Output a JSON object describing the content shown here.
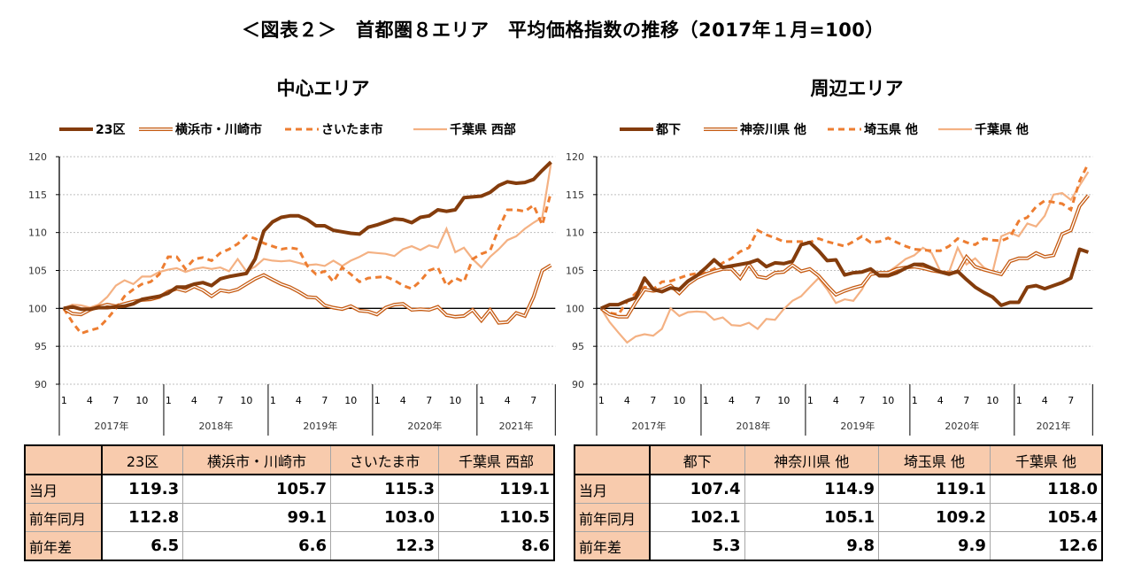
{
  "title": "＜図表２＞　首都圏８エリア　平均価格指数の推移（2017年１月=100）",
  "colors": {
    "s1": "#843c0c",
    "s2": "#c55a11",
    "s3": "#ed7d31",
    "s4": "#f4b183"
  },
  "chart_data": [
    {
      "type": "line",
      "title": "中心エリア",
      "ylim": [
        90,
        120
      ],
      "yticks": [
        90,
        95,
        100,
        105,
        110,
        115,
        120
      ],
      "grid": true,
      "legend": "top",
      "x_month_ticks": [
        "1",
        "4",
        "7",
        "10"
      ],
      "years": [
        "2017年",
        "2018年",
        "2019年",
        "2020年",
        "2021年"
      ],
      "x_start": "2017-01",
      "x_end": "2021-09",
      "series": [
        {
          "name": "23区",
          "style": "thick",
          "values": [
            100,
            100.2,
            99.9,
            99.9,
            100.1,
            100.1,
            100.2,
            100.3,
            100.6,
            101.2,
            101.4,
            101.6,
            102.0,
            102.8,
            102.8,
            103.2,
            103.4,
            103.0,
            103.9,
            104.2,
            104.4,
            104.6,
            106.5,
            110.2,
            111.4,
            112.0,
            112.2,
            112.2,
            111.7,
            110.9,
            110.9,
            110.3,
            110.1,
            109.9,
            109.8,
            110.7,
            111.0,
            111.4,
            111.8,
            111.7,
            111.3,
            112.0,
            112.2,
            113.0,
            112.8,
            113.0,
            114.6,
            114.7,
            114.8,
            115.3,
            116.2,
            116.7,
            116.5,
            116.6,
            117.0,
            118.2,
            119.3
          ]
        },
        {
          "name": "横浜市・川崎市",
          "style": "double",
          "values": [
            100,
            99.3,
            99.2,
            99.8,
            100.2,
            100.5,
            100.3,
            100.6,
            100.9,
            101.1,
            101.2,
            101.5,
            102.2,
            102.6,
            102.3,
            102.9,
            102.4,
            101.6,
            102.4,
            102.2,
            102.5,
            103.2,
            103.9,
            104.4,
            103.8,
            103.2,
            102.8,
            102.2,
            101.5,
            101.4,
            100.4,
            100.1,
            99.9,
            100.3,
            99.7,
            99.6,
            99.2,
            100.1,
            100.5,
            100.6,
            99.8,
            99.9,
            99.8,
            100.2,
            99.1,
            98.9,
            99.0,
            99.8,
            98.4,
            99.8,
            98.1,
            98.2,
            99.4,
            99.0,
            101.5,
            105.0,
            105.7
          ]
        },
        {
          "name": "さいたま市",
          "style": "dashed",
          "values": [
            100,
            98.2,
            96.7,
            97.1,
            97.4,
            98.6,
            100.0,
            101.6,
            102.5,
            103.2,
            103.5,
            104.5,
            106.8,
            106.8,
            105.2,
            106.5,
            106.7,
            106.3,
            107.3,
            107.8,
            108.5,
            109.6,
            109.2,
            108.6,
            108.2,
            107.8,
            108.0,
            107.8,
            105.6,
            104.5,
            104.9,
            103.5,
            105.4,
            104.5,
            103.5,
            104.0,
            104.1,
            104.2,
            103.7,
            103.0,
            102.6,
            103.6,
            105.0,
            105.4,
            103.0,
            104.0,
            103.5,
            106.5,
            107.2,
            107.6,
            110.5,
            113.0,
            113.0,
            112.8,
            113.6,
            111.0,
            115.3
          ]
        },
        {
          "name": "千葉県 西部",
          "style": "light",
          "values": [
            100,
            100.5,
            100.4,
            100.1,
            100.5,
            101.5,
            103.0,
            103.7,
            103.2,
            104.2,
            104.2,
            104.8,
            105.1,
            105.3,
            104.8,
            105.2,
            105.4,
            105.2,
            105.4,
            104.9,
            106.5,
            104.9,
            105.5,
            106.5,
            106.3,
            106.2,
            106.3,
            106.0,
            105.7,
            105.8,
            105.6,
            106.3,
            105.6,
            106.3,
            106.8,
            107.4,
            107.3,
            107.2,
            106.9,
            107.8,
            108.2,
            107.7,
            108.3,
            108.0,
            110.5,
            107.4,
            108.0,
            106.5,
            105.4,
            106.8,
            107.8,
            109.0,
            109.5,
            110.5,
            111.3,
            112.0,
            119.1
          ]
        }
      ]
    },
    {
      "type": "line",
      "title": "周辺エリア",
      "ylim": [
        90,
        120
      ],
      "yticks": [
        90,
        95,
        100,
        105,
        110,
        115,
        120
      ],
      "grid": true,
      "legend": "top",
      "x_month_ticks": [
        "1",
        "4",
        "7",
        "10"
      ],
      "years": [
        "2017年",
        "2018年",
        "2019年",
        "2020年",
        "2021年"
      ],
      "x_start": "2017-01",
      "x_end": "2021-09",
      "series": [
        {
          "name": "都下",
          "style": "thick",
          "values": [
            100,
            100.5,
            100.5,
            101,
            101.4,
            104.0,
            102.5,
            102.2,
            102.7,
            102.5,
            103.6,
            104.3,
            105.3,
            106.4,
            105.4,
            105.6,
            105.8,
            106.0,
            106.4,
            105.5,
            106.0,
            105.9,
            106.2,
            108.4,
            108.7,
            107.6,
            106.3,
            106.4,
            104.4,
            104.7,
            104.8,
            105.2,
            104.3,
            104.3,
            104.7,
            105.3,
            105.8,
            105.8,
            105.3,
            104.8,
            104.5,
            104.9,
            103.8,
            102.8,
            102.1,
            101.5,
            100.4,
            100.8,
            100.8,
            102.8,
            103.0,
            102.6,
            103.0,
            103.4,
            104.0,
            107.8,
            107.4
          ]
        },
        {
          "name": "神奈川県 他",
          "style": "double",
          "values": [
            100,
            99.2,
            98.9,
            98.9,
            100.8,
            102.5,
            102.3,
            102.5,
            103.0,
            102.0,
            103.2,
            104.0,
            104.5,
            104.9,
            105.2,
            105.2,
            104.0,
            105.8,
            104.2,
            104.0,
            104.7,
            104.8,
            105.7,
            104.9,
            105.2,
            104.3,
            103.0,
            101.8,
            102.3,
            102.7,
            103.0,
            104.5,
            104.7,
            104.7,
            105.2,
            105.4,
            105.5,
            105.3,
            105.0,
            104.8,
            104.6,
            104.8,
            106.8,
            105.5,
            105.1,
            104.8,
            104.5,
            106.2,
            106.6,
            106.6,
            107.3,
            106.8,
            107.0,
            109.8,
            110.3,
            113.5,
            114.9
          ]
        },
        {
          "name": "埼玉県 他",
          "style": "dashed",
          "values": [
            100,
            99.4,
            99.2,
            100.9,
            102.0,
            102.8,
            102.5,
            103.5,
            103.6,
            104.0,
            104.4,
            104.6,
            104.7,
            105.2,
            106.0,
            106.6,
            107.5,
            108.0,
            110.3,
            109.7,
            109.3,
            108.8,
            108.8,
            108.8,
            108.7,
            109.2,
            108.8,
            108.5,
            108.2,
            108.8,
            109.5,
            108.7,
            108.8,
            109.3,
            108.7,
            108.2,
            107.8,
            107.7,
            107.6,
            107.6,
            108.2,
            109.2,
            108.7,
            108.4,
            109.2,
            109.0,
            108.9,
            109.4,
            111.5,
            112.0,
            113.4,
            114.2,
            114.0,
            113.8,
            113.0,
            116.8,
            119.1
          ]
        },
        {
          "name": "千葉県 他",
          "style": "light",
          "values": [
            100,
            98.2,
            96.8,
            95.5,
            96.3,
            96.6,
            96.4,
            97.3,
            100.0,
            99.0,
            99.5,
            99.6,
            99.5,
            98.5,
            98.8,
            97.8,
            97.7,
            98.1,
            97.3,
            98.6,
            98.5,
            99.9,
            101.0,
            101.6,
            102.8,
            104.0,
            102.5,
            100.7,
            101.2,
            101.0,
            102.5,
            104.8,
            104.5,
            104.8,
            105.6,
            106.5,
            107.0,
            108.0,
            107.3,
            104.9,
            104.8,
            108.0,
            105.8,
            106.6,
            105.4,
            104.8,
            109.5,
            110.0,
            109.5,
            111.2,
            110.8,
            112.2,
            115.0,
            115.2,
            114.3,
            116.2,
            118.0
          ]
        }
      ]
    }
  ],
  "tables": [
    {
      "headers": [
        "23区",
        "横浜市・川崎市",
        "さいたま市",
        "千葉県 西部"
      ],
      "rows": [
        {
          "label": "当月",
          "values": [
            "119.3",
            "105.7",
            "115.3",
            "119.1"
          ]
        },
        {
          "label": "前年同月",
          "values": [
            "112.8",
            "99.1",
            "103.0",
            "110.5"
          ]
        },
        {
          "label": "前年差",
          "values": [
            "6.5",
            "6.6",
            "12.3",
            "8.6"
          ]
        }
      ]
    },
    {
      "headers": [
        "都下",
        "神奈川県 他",
        "埼玉県 他",
        "千葉県 他"
      ],
      "rows": [
        {
          "label": "当月",
          "values": [
            "107.4",
            "114.9",
            "119.1",
            "118.0"
          ]
        },
        {
          "label": "前年同月",
          "values": [
            "102.1",
            "105.1",
            "109.2",
            "105.4"
          ]
        },
        {
          "label": "前年差",
          "values": [
            "5.3",
            "9.8",
            "9.9",
            "12.6"
          ]
        }
      ]
    }
  ]
}
